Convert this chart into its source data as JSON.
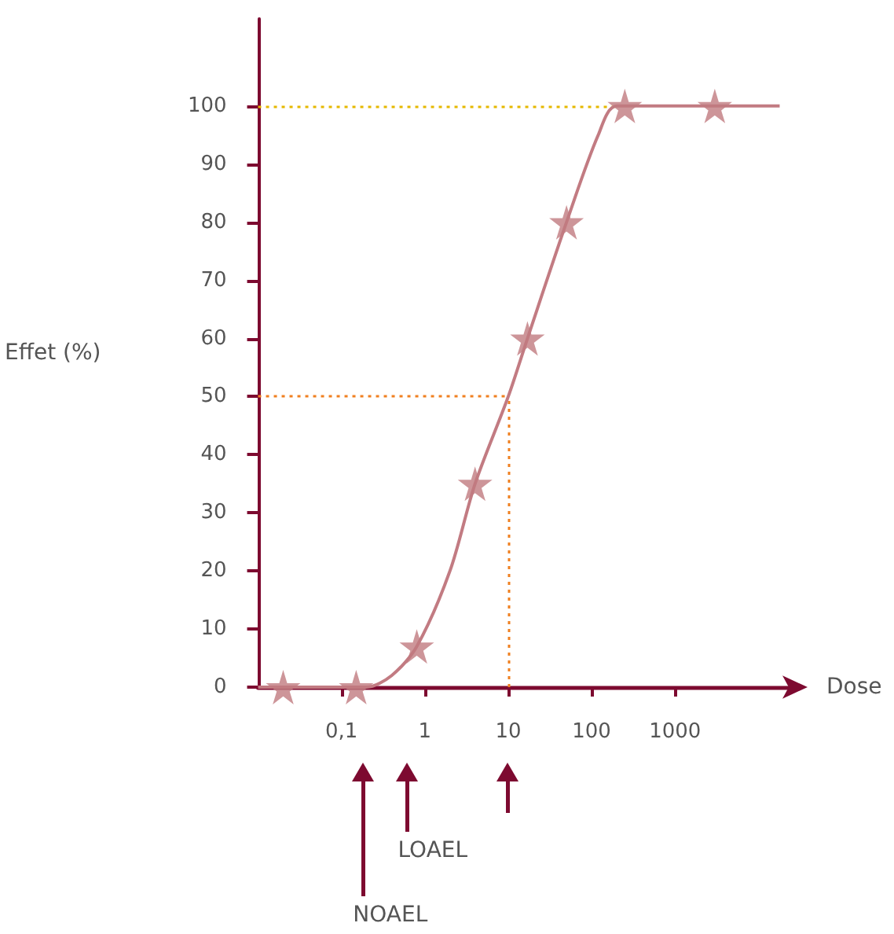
{
  "chart_data": {
    "type": "scatter",
    "xlabel": "Dose",
    "ylabel": "Effet (%)",
    "log": "x",
    "xlim": [
      0.01,
      30000
    ],
    "xticks": [
      {
        "value": 0.1,
        "label": "0,1"
      },
      1,
      10,
      100,
      1000
    ],
    "ylim": [
      0,
      115
    ],
    "yticks": [
      0,
      10,
      20,
      30,
      40,
      50,
      60,
      70,
      80,
      90,
      100
    ],
    "series": [
      {
        "type": "line",
        "marker": "none",
        "color": "#c27b82",
        "x": [
          0.01,
          0.1,
          0.2,
          0.4,
          0.8,
          2,
          4,
          10,
          17,
          50,
          120,
          200,
          18000
        ],
        "values": [
          0,
          0,
          0,
          2,
          7,
          20,
          35,
          50,
          60,
          80,
          95,
          100,
          100
        ]
      },
      {
        "marker": "star",
        "color": "#c07a80",
        "x": [
          0.02,
          0.15,
          0.8,
          4,
          17,
          50,
          250,
          3000
        ],
        "values": [
          0,
          0,
          7,
          35,
          60,
          80,
          100,
          100
        ]
      }
    ],
    "ref_lines": [
      {
        "axis": "y",
        "value": 100,
        "color": "#e6b800",
        "line_style": "dotted"
      },
      {
        "axis": "y",
        "value": 50,
        "color": "#f08020",
        "line_style": "dotted"
      },
      {
        "axis": "x",
        "value": 10,
        "color": "#f08020",
        "line_style": "dotted"
      }
    ],
    "annotations": [
      "NOAEL",
      "LOAEL"
    ]
  }
}
